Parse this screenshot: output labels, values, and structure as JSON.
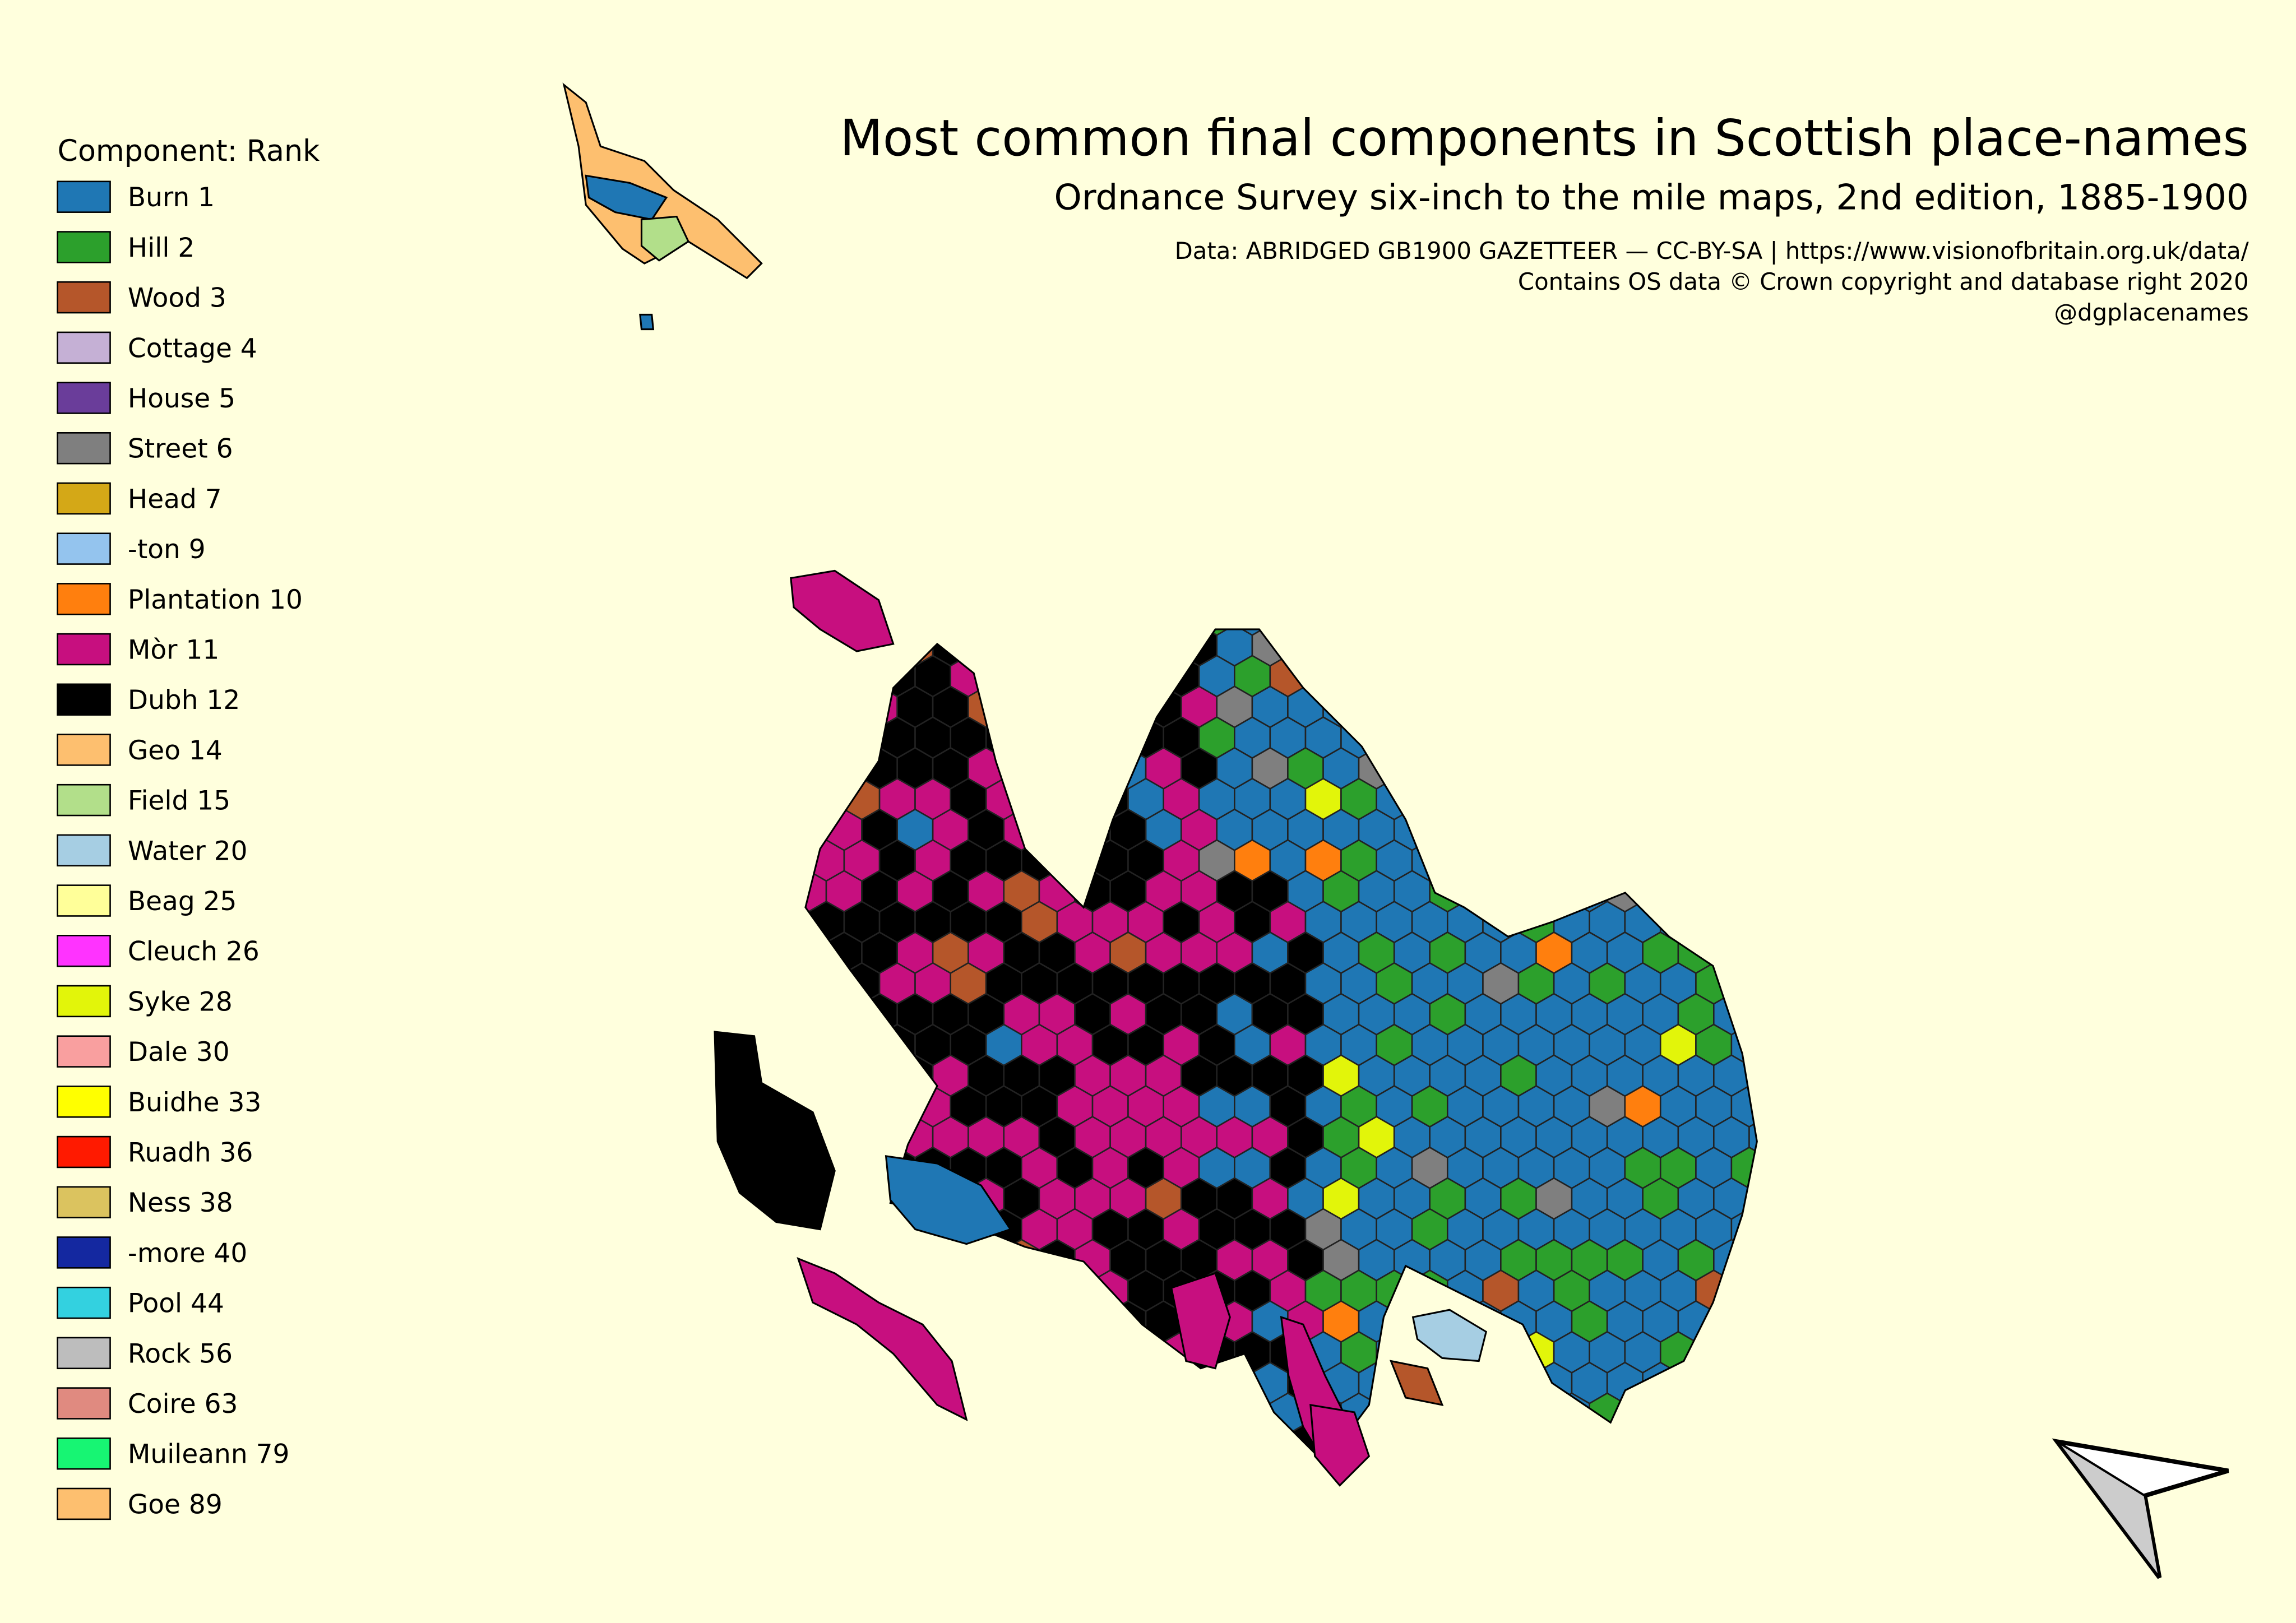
{
  "map": {
    "title": "Most common final components in Scottish place-names",
    "subtitle": "Ordnance Survey six-inch to the mile maps, 2nd edition, 1885-1900",
    "credits": [
      "Data: ABRIDGED GB1900 GAZETTEER — CC-BY-SA | https://www.visionofbritain.org.uk/data/",
      "Contains OS data © Crown copyright and database right 2020",
      "@dgplacenames"
    ],
    "legend": {
      "title": "Component: Rank",
      "items": [
        {
          "label": "Burn 1",
          "color": "#1f77b4"
        },
        {
          "label": "Hill 2",
          "color": "#2ca02c"
        },
        {
          "label": "Wood 3",
          "color": "#b5562a"
        },
        {
          "label": "Cottage 4",
          "color": "#c5b0d5"
        },
        {
          "label": "House 5",
          "color": "#6a3d9a"
        },
        {
          "label": "Street 6",
          "color": "#7f7f7f"
        },
        {
          "label": "Head 7",
          "color": "#d4a817"
        },
        {
          "label": "-ton 9",
          "color": "#94c4ee"
        },
        {
          "label": "Plantation 10",
          "color": "#ff7f0e"
        },
        {
          "label": "Mòr 11",
          "color": "#c70f7f"
        },
        {
          "label": "Dubh 12",
          "color": "#000000"
        },
        {
          "label": "Geo 14",
          "color": "#fdbf6f"
        },
        {
          "label": "Field 15",
          "color": "#b2df8a"
        },
        {
          "label": "Water 20",
          "color": "#a6cee3"
        },
        {
          "label": "Beag 25",
          "color": "#ffff99"
        },
        {
          "label": "Cleuch 26",
          "color": "#ff33ff"
        },
        {
          "label": "Syke 28",
          "color": "#e2f50a"
        },
        {
          "label": "Dale 30",
          "color": "#f99f9f"
        },
        {
          "label": "Buidhe 33",
          "color": "#ffff00"
        },
        {
          "label": "Ruadh 36",
          "color": "#ff1a00"
        },
        {
          "label": "Ness 38",
          "color": "#dbc35f"
        },
        {
          "label": "-more 40",
          "color": "#1428a0"
        },
        {
          "label": "Pool 44",
          "color": "#33d1e0"
        },
        {
          "label": "Rock 56",
          "color": "#bdbdbd"
        },
        {
          "label": "Coire 63",
          "color": "#e08a80"
        },
        {
          "label": "Muileann 79",
          "color": "#17f573"
        },
        {
          "label": "Goe 89",
          "color": "#fdbf6f"
        }
      ]
    }
  }
}
